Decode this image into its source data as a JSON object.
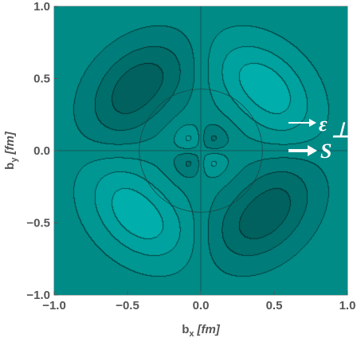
{
  "chart_data": {
    "type": "contour",
    "title": "",
    "xlabel": "b",
    "xlabel_sub": "x",
    "xlabel_unit": "[fm]",
    "ylabel": "b",
    "ylabel_sub": "y",
    "ylabel_unit": "[fm]",
    "xlim": [
      -1.0,
      1.0
    ],
    "ylim": [
      -1.0,
      1.0
    ],
    "xticks": [
      -1.0,
      -0.5,
      0.0,
      0.5,
      1.0
    ],
    "xtick_labels": [
      "−1.0",
      "−0.5",
      "0.0",
      "0.5",
      "1.0"
    ],
    "yticks": [
      -1.0,
      -0.5,
      0.0,
      0.5,
      1.0
    ],
    "ytick_labels": [
      "−1.0",
      "−0.5",
      "0.0",
      "0.5",
      "1.0"
    ],
    "colormap": [
      "#000000",
      "#008b87",
      "#00ffff"
    ],
    "background_color": "#008b87",
    "inner_circle_radius": 0.42,
    "lobes": {
      "outer": [
        {
          "quadrant": "upper-left",
          "center": [
            -0.5,
            0.5
          ],
          "sign": "light"
        },
        {
          "quadrant": "upper-right",
          "center": [
            0.5,
            0.5
          ],
          "sign": "dark"
        },
        {
          "quadrant": "lower-left",
          "center": [
            -0.5,
            -0.5
          ],
          "sign": "dark"
        },
        {
          "quadrant": "lower-right",
          "center": [
            0.5,
            -0.5
          ],
          "sign": "light"
        }
      ],
      "inner": [
        {
          "quadrant": "upper-left",
          "sign": "dark"
        },
        {
          "quadrant": "upper-right",
          "sign": "light"
        },
        {
          "quadrant": "lower-left",
          "sign": "light"
        },
        {
          "quadrant": "lower-right",
          "sign": "dark"
        }
      ]
    },
    "annotations": [
      {
        "symbol": "ε",
        "sub": "⊥",
        "arrow": "right",
        "style": "thin"
      },
      {
        "symbol": "S",
        "arrow": "right",
        "style": "thick"
      }
    ]
  }
}
